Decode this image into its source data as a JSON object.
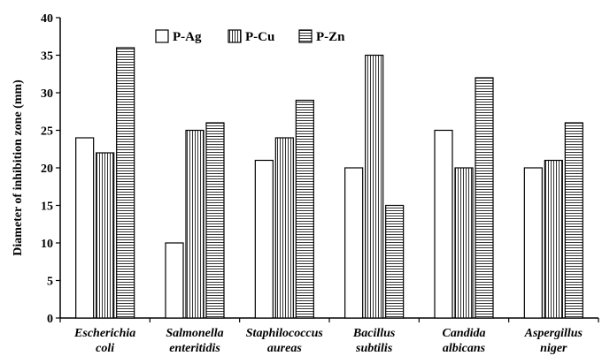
{
  "chart_data": {
    "type": "bar",
    "title": "",
    "xlabel": "",
    "ylabel": "Diameter of inhibition zone (mm)",
    "ylim": [
      0,
      40
    ],
    "yticks": [
      0,
      5,
      10,
      15,
      20,
      25,
      30,
      35,
      40
    ],
    "grid": false,
    "legend_position": "top-left",
    "categories": [
      [
        "Escherichia",
        "coli"
      ],
      [
        "Salmonella",
        "enteritidis"
      ],
      [
        "Staphilococcus",
        "aureas"
      ],
      [
        "Bacillus",
        "subtilis"
      ],
      [
        "Candida",
        "albicans"
      ],
      [
        "Aspergillus",
        "niger"
      ]
    ],
    "series": [
      {
        "name": "P-Ag",
        "pattern": "solid-white",
        "values": [
          24,
          10,
          21,
          20,
          25,
          20
        ]
      },
      {
        "name": "P-Cu",
        "pattern": "vertical-lines",
        "values": [
          22,
          25,
          24,
          35,
          20,
          21
        ]
      },
      {
        "name": "P-Zn",
        "pattern": "horizontal-lines",
        "values": [
          36,
          26,
          29,
          15,
          32,
          26
        ]
      }
    ],
    "colors": {
      "outline": "#000000",
      "fill": "#ffffff"
    }
  }
}
